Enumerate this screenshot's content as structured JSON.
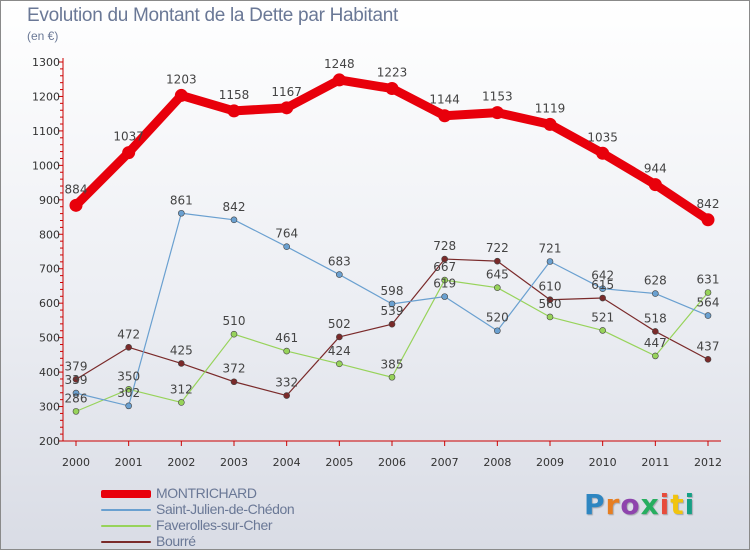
{
  "chart_data": {
    "type": "line",
    "title": "Evolution du Montant de la Dette par Habitant",
    "subtitle": "(en €)",
    "x": [
      "2000",
      "2001",
      "2002",
      "2003",
      "2004",
      "2005",
      "2006",
      "2007",
      "2008",
      "2009",
      "2010",
      "2011",
      "2012"
    ],
    "ylim": [
      200,
      1300
    ],
    "yticks": [
      200,
      300,
      400,
      500,
      600,
      700,
      800,
      900,
      1000,
      1100,
      1200,
      1300
    ],
    "grid": false,
    "legend_position": "bottom-left",
    "series": [
      {
        "name": "MONTRICHARD",
        "color": "#e8000b",
        "values": [
          884,
          1037,
          1203,
          1158,
          1167,
          1248,
          1223,
          1144,
          1153,
          1119,
          1035,
          944,
          842
        ]
      },
      {
        "name": "Saint-Julien-de-Chédon",
        "color": "#6aa0d0",
        "values": [
          339,
          302,
          861,
          842,
          764,
          683,
          598,
          619,
          520,
          721,
          642,
          628,
          564
        ]
      },
      {
        "name": "Faverolles-sur-Cher",
        "color": "#97d35a",
        "values": [
          286,
          350,
          312,
          510,
          461,
          424,
          385,
          667,
          645,
          560,
          521,
          447,
          631
        ]
      },
      {
        "name": "Bourré",
        "color": "#7a2a2a",
        "values": [
          379,
          472,
          425,
          372,
          332,
          502,
          539,
          728,
          722,
          610,
          615,
          518,
          437
        ]
      }
    ]
  },
  "brand": {
    "letters": [
      "P",
      "r",
      "o",
      "x",
      "i",
      "t",
      "i"
    ]
  }
}
